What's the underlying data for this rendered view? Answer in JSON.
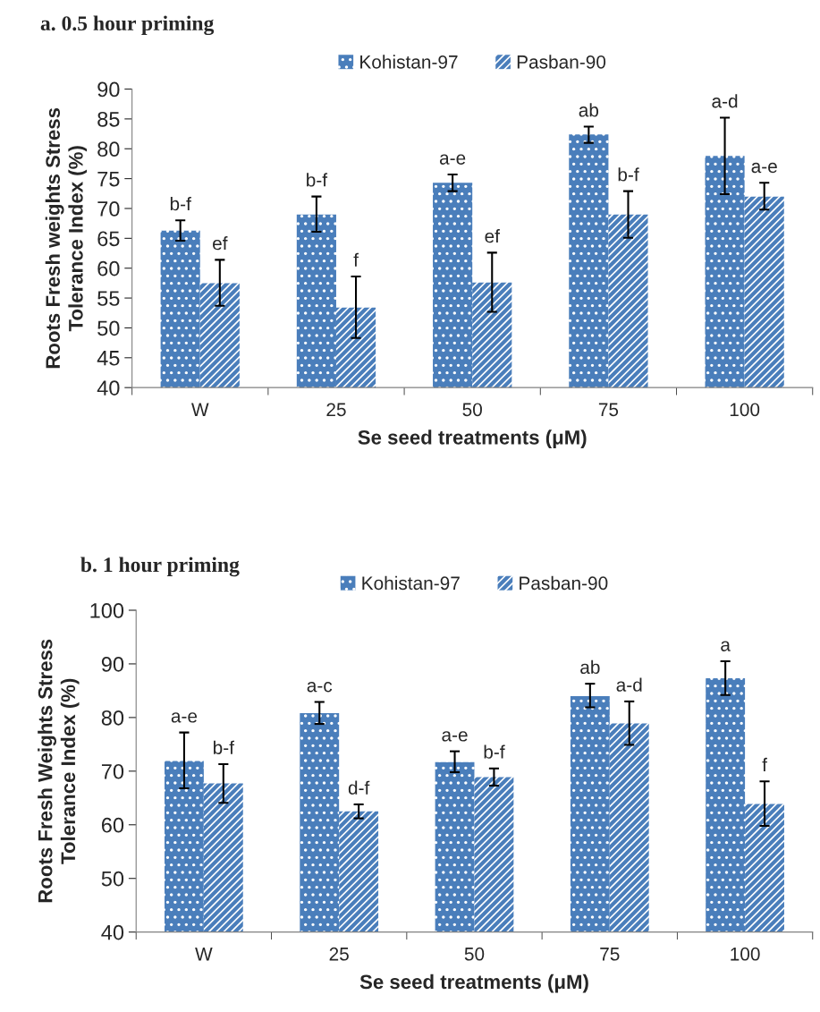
{
  "chart_data": [
    {
      "type": "bar",
      "title": "a. 0.5 hour priming",
      "xlabel": "Se seed treatments (μM)",
      "ylabel": "Roots Fresh weights Stress\nTolerance Index (%)",
      "categories": [
        "W",
        "25",
        "50",
        "75",
        "100"
      ],
      "series": [
        {
          "name": "Kohistan-97",
          "color": "#4a7ebb",
          "values": [
            66.3,
            69.0,
            74.3,
            82.4,
            78.8
          ],
          "errors": [
            [
              64.6,
              68.0
            ],
            [
              66.1,
              72.0
            ],
            [
              72.9,
              75.7
            ],
            [
              81.0,
              83.7
            ],
            [
              72.4,
              85.2
            ]
          ],
          "value_labels": [
            "b-f",
            "b-f",
            "a-e",
            "ab",
            "a-d"
          ]
        },
        {
          "name": "Pasban-90",
          "color": "#4a7ebb",
          "values": [
            57.5,
            53.4,
            57.6,
            69.0,
            72.0
          ],
          "errors": [
            [
              53.7,
              61.4
            ],
            [
              48.3,
              58.6
            ],
            [
              52.7,
              62.6
            ],
            [
              65.1,
              72.9
            ],
            [
              69.8,
              74.3
            ]
          ],
          "value_labels": [
            "ef",
            "f",
            "ef",
            "b-f",
            "a-e"
          ]
        }
      ],
      "ylim": [
        40,
        90
      ],
      "yticks": [
        40,
        45,
        50,
        55,
        60,
        65,
        70,
        75,
        80,
        85,
        90
      ],
      "legend": "top",
      "grid": false
    },
    {
      "type": "bar",
      "title": "b. 1 hour priming",
      "xlabel": "Se seed treatments (μM)",
      "ylabel": "Roots Fresh Weights Stress\nTolerance Index (%)",
      "categories": [
        "W",
        "25",
        "50",
        "75",
        "100"
      ],
      "series": [
        {
          "name": "Kohistan-97",
          "color": "#4a7ebb",
          "values": [
            71.9,
            80.8,
            71.7,
            84.0,
            87.3
          ],
          "errors": [
            [
              66.8,
              77.2
            ],
            [
              78.8,
              82.9
            ],
            [
              69.8,
              73.7
            ],
            [
              81.9,
              86.3
            ],
            [
              84.2,
              90.5
            ]
          ],
          "value_labels": [
            "a-e",
            "a-c",
            "a-e",
            "ab",
            "a"
          ]
        },
        {
          "name": "Pasban-90",
          "color": "#4a7ebb",
          "values": [
            67.7,
            62.5,
            68.9,
            78.9,
            63.9
          ],
          "errors": [
            [
              64.1,
              71.3
            ],
            [
              61.2,
              63.8
            ],
            [
              67.3,
              70.5
            ],
            [
              74.9,
              83.0
            ],
            [
              59.8,
              68.1
            ]
          ],
          "value_labels": [
            "b-f",
            "d-f",
            "b-f",
            "a-d",
            "f"
          ]
        }
      ],
      "ylim": [
        40,
        100
      ],
      "yticks": [
        40,
        50,
        60,
        70,
        80,
        90,
        100
      ],
      "legend": "top",
      "grid": false
    }
  ]
}
